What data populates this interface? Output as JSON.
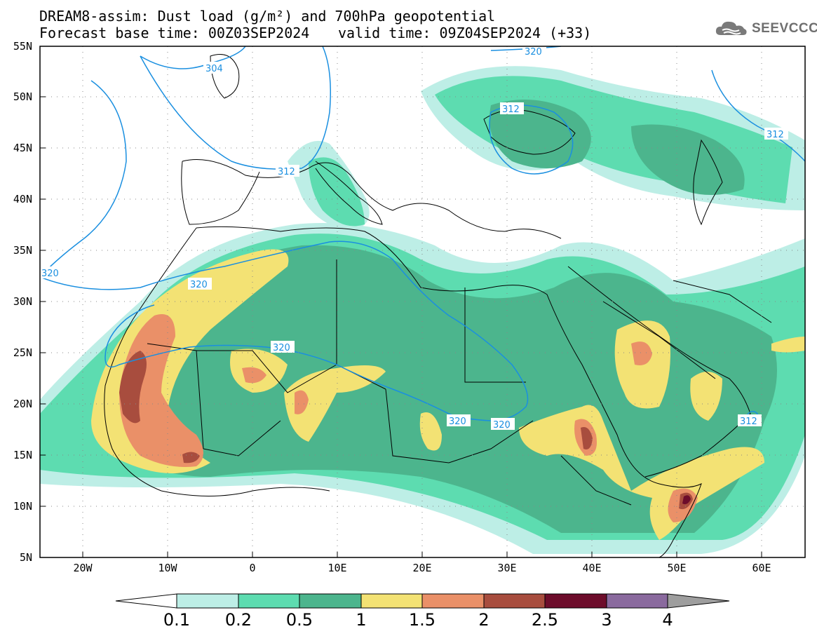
{
  "title": {
    "line1": "DREAM8-assim: Dust load (g/m²) and 700hPa geopotential",
    "line2": "Forecast base time: 00Z03SEP2024",
    "valid": "valid time: 09Z04SEP2024 (+33)"
  },
  "logo": {
    "text": "SEEVCCC",
    "icon": "cloud-icon"
  },
  "map": {
    "lat_labels": [
      "55N",
      "50N",
      "45N",
      "40N",
      "35N",
      "30N",
      "25N",
      "20N",
      "15N",
      "10N",
      "5N"
    ],
    "lon_labels": [
      "20W",
      "10W",
      "0",
      "10E",
      "20E",
      "30E",
      "40E",
      "50E",
      "60E"
    ],
    "contour_labels": [
      "304",
      "320",
      "312",
      "312",
      "312",
      "320",
      "320",
      "320",
      "320",
      "320",
      "312"
    ]
  },
  "colorbar": {
    "tick_labels": [
      "0.1",
      "0.2",
      "0.5",
      "1",
      "1.5",
      "2",
      "2.5",
      "3",
      "4"
    ],
    "colors": [
      "#bdeee6",
      "#5ddcb0",
      "#4cb58d",
      "#f3e274",
      "#ea9068",
      "#a84d3e",
      "#6d0d2b",
      "#8a6a9e"
    ],
    "over_color": "#9e9e9e",
    "under_color": "#ffffff"
  },
  "legend_colors": {
    "contour": "#1a8fe0",
    "border": "#000000"
  }
}
